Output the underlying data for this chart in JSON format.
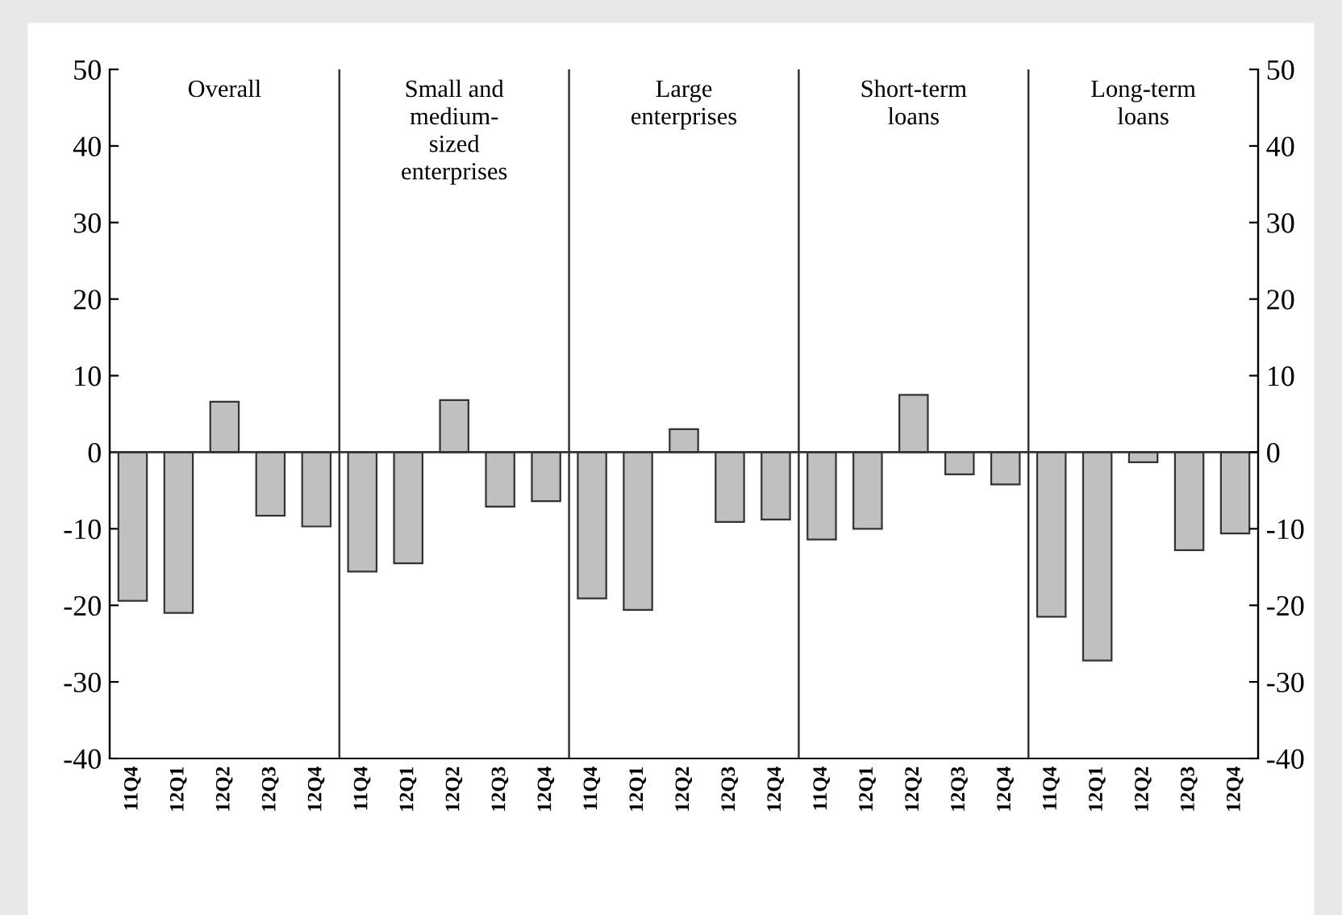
{
  "chart_data": {
    "type": "bar",
    "categories": [
      "11Q4",
      "12Q1",
      "12Q2",
      "12Q3",
      "12Q4",
      "11Q4",
      "12Q1",
      "12Q2",
      "12Q3",
      "12Q4",
      "11Q4",
      "12Q1",
      "12Q2",
      "12Q3",
      "12Q4",
      "11Q4",
      "12Q1",
      "12Q2",
      "12Q3",
      "12Q4",
      "11Q4",
      "12Q1",
      "12Q2",
      "12Q3",
      "12Q4"
    ],
    "values": [
      -19.4,
      -21.0,
      6.6,
      -8.3,
      -9.7,
      -15.6,
      -14.5,
      6.8,
      -7.1,
      -6.4,
      -19.1,
      -20.6,
      3.0,
      -9.1,
      -8.8,
      -11.4,
      -10.0,
      7.5,
      -2.9,
      -4.2,
      -21.5,
      -27.2,
      -1.3,
      -12.8,
      -10.6
    ],
    "color": "#c0c0c0",
    "ylim": [
      -40,
      50
    ],
    "yticks": [
      -40,
      -30,
      -20,
      -10,
      0,
      10,
      20,
      30,
      40,
      50
    ],
    "y2lim": [
      -40,
      50
    ],
    "y2ticks": [
      -40,
      -30,
      -20,
      -10,
      0,
      10,
      20,
      30,
      40,
      50
    ],
    "annotations": [
      "Overall",
      "Small and\nmedium-\nsized\nenterprises",
      "Large\nenterprises",
      "Short-term\nloans",
      "Long-term\nloans"
    ],
    "grid": false,
    "legend": false
  }
}
